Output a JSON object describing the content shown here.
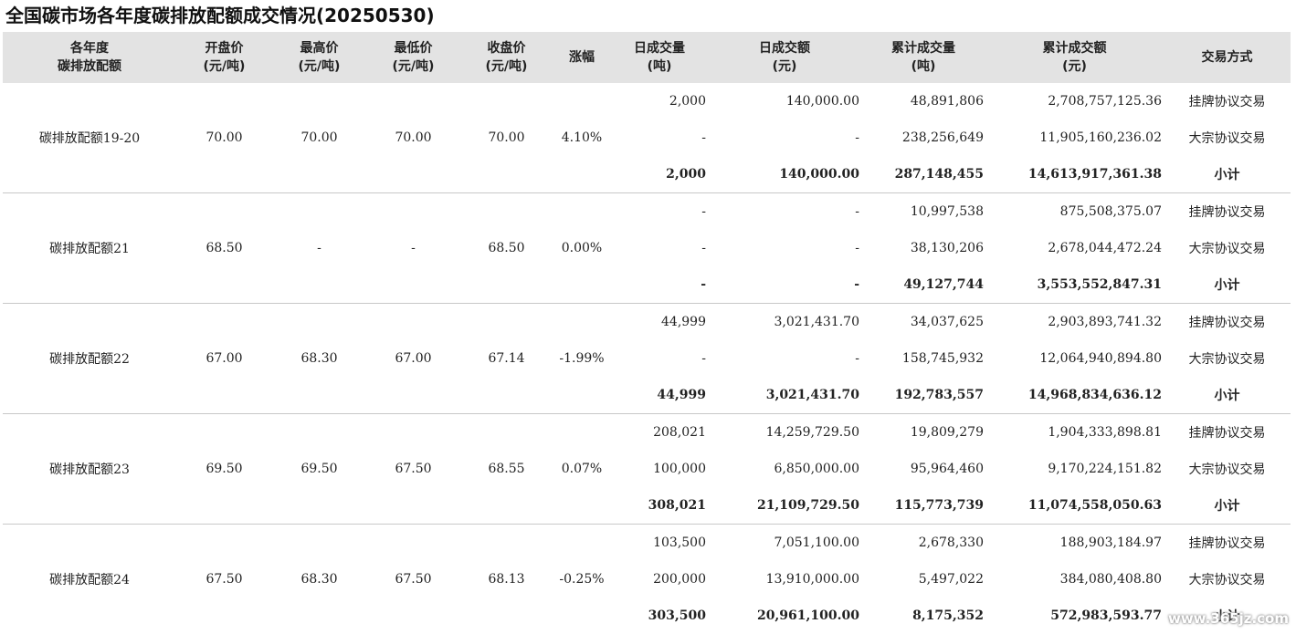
{
  "title": "全国碳市场各年度碳排放配额成交情况(20250530)",
  "headers": [
    {
      "l1": "各年度",
      "l2": "碳排放配额"
    },
    {
      "l1": "开盘价",
      "l2": "(元/吨)"
    },
    {
      "l1": "最高价",
      "l2": "(元/吨)"
    },
    {
      "l1": "最低价",
      "l2": "(元/吨)"
    },
    {
      "l1": "收盘价",
      "l2": "(元/吨)"
    },
    {
      "l1": "涨幅",
      "l2": ""
    },
    {
      "l1": "日成交量",
      "l2": "(吨)"
    },
    {
      "l1": "日成交额",
      "l2": "(元)"
    },
    {
      "l1": "累计成交量",
      "l2": "(吨)"
    },
    {
      "l1": "累计成交额",
      "l2": "(元)"
    },
    {
      "l1": "交易方式",
      "l2": ""
    }
  ],
  "groups": [
    {
      "name": "碳排放配额19-20",
      "open": "70.00",
      "high": "70.00",
      "low": "70.00",
      "close": "70.00",
      "change": "4.10%",
      "rows": [
        {
          "vol": "2,000",
          "amt": "140,000.00",
          "cvol": "48,891,806",
          "camt": "2,708,757,125.36",
          "type": "挂牌协议交易"
        },
        {
          "vol": "-",
          "amt": "-",
          "cvol": "238,256,649",
          "camt": "11,905,160,236.02",
          "type": "大宗协议交易"
        },
        {
          "vol": "2,000",
          "amt": "140,000.00",
          "cvol": "287,148,455",
          "camt": "14,613,917,361.38",
          "type": "小计"
        }
      ]
    },
    {
      "name": "碳排放配额21",
      "open": "68.50",
      "high": "-",
      "low": "-",
      "close": "68.50",
      "change": "0.00%",
      "rows": [
        {
          "vol": "-",
          "amt": "-",
          "cvol": "10,997,538",
          "camt": "875,508,375.07",
          "type": "挂牌协议交易"
        },
        {
          "vol": "-",
          "amt": "-",
          "cvol": "38,130,206",
          "camt": "2,678,044,472.24",
          "type": "大宗协议交易"
        },
        {
          "vol": "-",
          "amt": "-",
          "cvol": "49,127,744",
          "camt": "3,553,552,847.31",
          "type": "小计"
        }
      ]
    },
    {
      "name": "碳排放配额22",
      "open": "67.00",
      "high": "68.30",
      "low": "67.00",
      "close": "67.14",
      "change": "-1.99%",
      "rows": [
        {
          "vol": "44,999",
          "amt": "3,021,431.70",
          "cvol": "34,037,625",
          "camt": "2,903,893,741.32",
          "type": "挂牌协议交易"
        },
        {
          "vol": "-",
          "amt": "-",
          "cvol": "158,745,932",
          "camt": "12,064,940,894.80",
          "type": "大宗协议交易"
        },
        {
          "vol": "44,999",
          "amt": "3,021,431.70",
          "cvol": "192,783,557",
          "camt": "14,968,834,636.12",
          "type": "小计"
        }
      ]
    },
    {
      "name": "碳排放配额23",
      "open": "69.50",
      "high": "69.50",
      "low": "67.50",
      "close": "68.55",
      "change": "0.07%",
      "rows": [
        {
          "vol": "208,021",
          "amt": "14,259,729.50",
          "cvol": "19,809,279",
          "camt": "1,904,333,898.81",
          "type": "挂牌协议交易"
        },
        {
          "vol": "100,000",
          "amt": "6,850,000.00",
          "cvol": "95,964,460",
          "camt": "9,170,224,151.82",
          "type": "大宗协议交易"
        },
        {
          "vol": "308,021",
          "amt": "21,109,729.50",
          "cvol": "115,773,739",
          "camt": "11,074,558,050.63",
          "type": "小计"
        }
      ]
    },
    {
      "name": "碳排放配额24",
      "open": "67.50",
      "high": "68.30",
      "low": "67.50",
      "close": "68.13",
      "change": "-0.25%",
      "rows": [
        {
          "vol": "103,500",
          "amt": "7,051,100.00",
          "cvol": "2,678,330",
          "camt": "188,903,184.97",
          "type": "挂牌协议交易"
        },
        {
          "vol": "200,000",
          "amt": "13,910,000.00",
          "cvol": "5,497,022",
          "camt": "384,080,408.80",
          "type": "大宗协议交易"
        },
        {
          "vol": "303,500",
          "amt": "20,961,100.00",
          "cvol": "8,175,352",
          "camt": "572,983,593.77",
          "type": "小计"
        }
      ]
    }
  ],
  "watermark": "www.365jz.com"
}
